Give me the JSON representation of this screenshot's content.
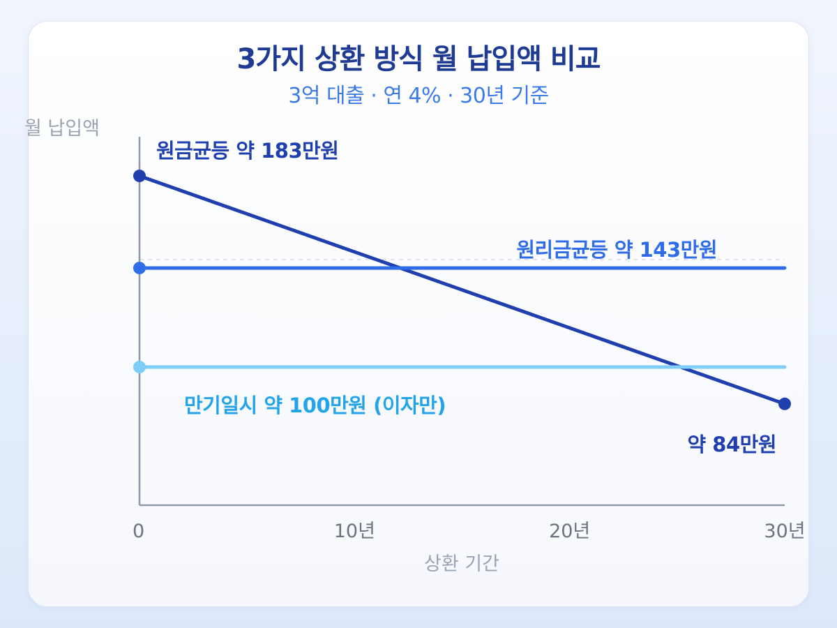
{
  "chart_data": {
    "type": "line",
    "title": "3가지 상환 방식 월 납입액 비교",
    "subtitle": "3억 대출 · 연 4% · 30년 기준",
    "ylabel": "월 납입액",
    "xlabel": "상환 기간",
    "x_ticks": [
      {
        "value": 0,
        "label": "0"
      },
      {
        "value": 10,
        "label": "10년"
      },
      {
        "value": 20,
        "label": "20년"
      },
      {
        "value": 30,
        "label": "30년"
      }
    ],
    "xlim": [
      0,
      30
    ],
    "ylim": [
      40,
      200
    ],
    "series": [
      {
        "name": "원금균등",
        "color": "#1f3fae",
        "points": [
          [
            0,
            183
          ],
          [
            30,
            84
          ]
        ],
        "labels": [
          {
            "text": "원금균등 약 183만원",
            "at": "start"
          },
          {
            "text": "약 84만원",
            "at": "end"
          }
        ]
      },
      {
        "name": "원리금균등",
        "color": "#2f6ce8",
        "points": [
          [
            0,
            143
          ],
          [
            30,
            143
          ]
        ],
        "labels": [
          {
            "text": "원리금균등 약 143만원",
            "at": "end"
          }
        ]
      },
      {
        "name": "만기일시",
        "color": "#7ecdf9",
        "labelColor": "#23a4e8",
        "points": [
          [
            0,
            100
          ],
          [
            30,
            100
          ]
        ],
        "labels": [
          {
            "text": "만기일시 약 100만원 (이자만)",
            "at": "start"
          }
        ]
      }
    ]
  }
}
